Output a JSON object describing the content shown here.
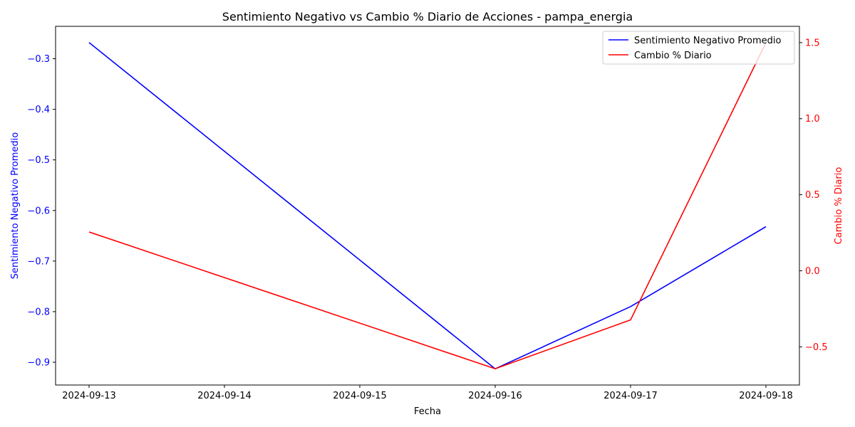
{
  "chart_data": {
    "type": "line",
    "title": "Sentimiento Negativo vs Cambio % Diario de Acciones - pampa_energia",
    "xlabel": "Fecha",
    "ylabel_left": "Sentimiento Negativo Promedio",
    "ylabel_right": "Cambio % Diario",
    "x": [
      "2024-09-13",
      "2024-09-16",
      "2024-09-17",
      "2024-09-18"
    ],
    "x_ticks": [
      "2024-09-13",
      "2024-09-14",
      "2024-09-15",
      "2024-09-16",
      "2024-09-17",
      "2024-09-18"
    ],
    "series": [
      {
        "name": "Sentimiento Negativo Promedio",
        "axis": "left",
        "color": "#0000ff",
        "values": [
          -0.268,
          -0.913,
          -0.79,
          -0.632
        ]
      },
      {
        "name": "Cambio % Diario",
        "axis": "right",
        "color": "#ff0000",
        "values": [
          0.255,
          -0.644,
          -0.323,
          1.5
        ]
      }
    ],
    "ylim_left": [
      -0.945,
      -0.236
    ],
    "yticks_left": [
      "−0.3",
      "−0.4",
      "−0.5",
      "−0.6",
      "−0.7",
      "−0.8",
      "−0.9"
    ],
    "yticks_left_values": [
      -0.3,
      -0.4,
      -0.5,
      -0.6,
      -0.7,
      -0.8,
      -0.9
    ],
    "ylim_right": [
      -0.751,
      1.607
    ],
    "yticks_right": [
      "−0.5",
      "0.0",
      "0.5",
      "1.0",
      "1.5"
    ],
    "yticks_right_values": [
      -0.5,
      0.0,
      0.5,
      1.0,
      1.5
    ],
    "legend_position": "top-right",
    "grid": false
  }
}
